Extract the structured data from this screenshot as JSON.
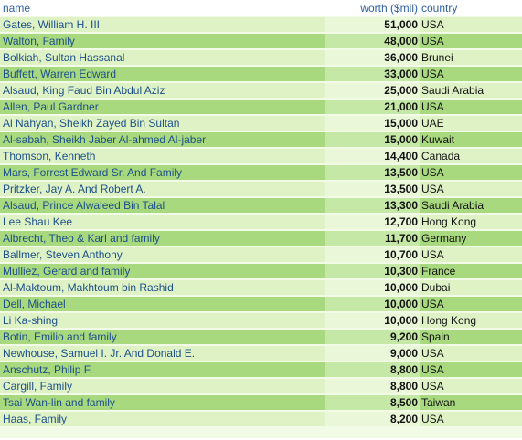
{
  "table": {
    "headers": {
      "name": "name",
      "worth": "worth ($mil)",
      "country": "country"
    },
    "rows": [
      {
        "name": "Gates, William H. III",
        "worth": "51,000",
        "country": "USA"
      },
      {
        "name": "Walton, Family",
        "worth": "48,000",
        "country": "USA"
      },
      {
        "name": "Bolkiah, Sultan Hassanal",
        "worth": "36,000",
        "country": "Brunei"
      },
      {
        "name": "Buffett, Warren Edward",
        "worth": "33,000",
        "country": "USA"
      },
      {
        "name": "Alsaud, King Faud Bin Abdul Aziz",
        "worth": "25,000",
        "country": "Saudi Arabia"
      },
      {
        "name": "Allen, Paul Gardner",
        "worth": "21,000",
        "country": "USA"
      },
      {
        "name": "Al Nahyan, Sheikh Zayed Bin Sultan",
        "worth": "15,000",
        "country": "UAE"
      },
      {
        "name": "Al-sabah, Sheikh Jaber Al-ahmed Al-jaber",
        "worth": "15,000",
        "country": "Kuwait"
      },
      {
        "name": "Thomson, Kenneth",
        "worth": "14,400",
        "country": "Canada"
      },
      {
        "name": "Mars, Forrest Edward Sr. And Family",
        "worth": "13,500",
        "country": "USA"
      },
      {
        "name": "Pritzker, Jay A. And Robert A.",
        "worth": "13,500",
        "country": "USA"
      },
      {
        "name": "Alsaud, Prince Alwaleed Bin Talal",
        "worth": "13,300",
        "country": "Saudi Arabia"
      },
      {
        "name": "Lee Shau Kee",
        "worth": "12,700",
        "country": "Hong Kong"
      },
      {
        "name": "Albrecht, Theo & Karl and family",
        "worth": "11,700",
        "country": "Germany"
      },
      {
        "name": "Ballmer, Steven Anthony",
        "worth": "10,700",
        "country": "USA"
      },
      {
        "name": "Mulliez, Gerard and family",
        "worth": "10,300",
        "country": "France"
      },
      {
        "name": "Al-Maktoum, Makhtoum bin Rashid",
        "worth": "10,000",
        "country": "Dubai"
      },
      {
        "name": "Dell, Michael",
        "worth": "10,000",
        "country": "USA"
      },
      {
        "name": "Li Ka-shing",
        "worth": "10,000",
        "country": "Hong Kong"
      },
      {
        "name": "Botin, Emilio and family",
        "worth": "9,200",
        "country": "Spain"
      },
      {
        "name": "Newhouse, Samuel I. Jr. And Donald E.",
        "worth": "9,000",
        "country": "USA"
      },
      {
        "name": "Anschutz, Philip F.",
        "worth": "8,800",
        "country": "USA"
      },
      {
        "name": "Cargill, Family",
        "worth": "8,800",
        "country": "USA"
      },
      {
        "name": "Tsai Wan-lin and family",
        "worth": "8,500",
        "country": "Taiwan"
      },
      {
        "name": "Haas, Family",
        "worth": "8,200",
        "country": "USA"
      }
    ]
  }
}
